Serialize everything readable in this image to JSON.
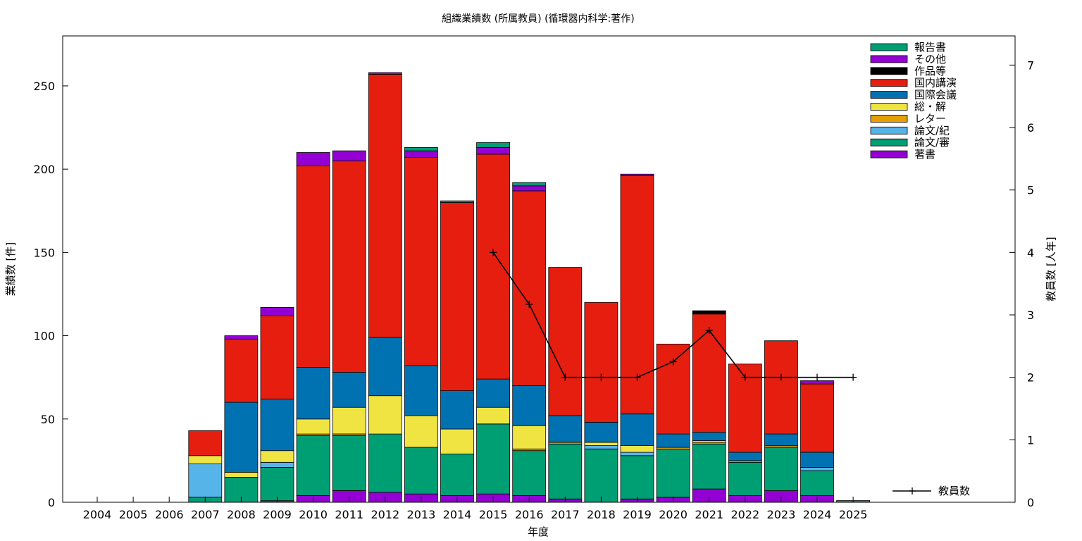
{
  "chart_data": {
    "type": "bar",
    "stacked": true,
    "title": "組織業績数 (所属教員) (循環器内科学:著作)",
    "xlabel": "年度",
    "ylabel": "業績数 [件]",
    "y2label": "教員数 [人年]",
    "ylim": [
      0,
      280
    ],
    "y2lim": [
      0,
      7.466667
    ],
    "yticks": [
      0,
      50,
      100,
      150,
      200,
      250
    ],
    "y2ticks": [
      0,
      1,
      2,
      3,
      4,
      5,
      6,
      7
    ],
    "grid": false,
    "legend_position": "top-right",
    "categories": [
      "2004",
      "2005",
      "2006",
      "2007",
      "2008",
      "2009",
      "2010",
      "2011",
      "2012",
      "2013",
      "2014",
      "2015",
      "2016",
      "2017",
      "2018",
      "2019",
      "2020",
      "2021",
      "2022",
      "2023",
      "2024",
      "2025"
    ],
    "series": [
      {
        "name": "著書",
        "color": "#9400d3",
        "values": [
          0,
          0,
          0,
          0,
          0,
          1,
          4,
          7,
          6,
          5,
          4,
          5,
          4,
          2,
          0,
          2,
          3,
          8,
          4,
          7,
          4,
          0
        ]
      },
      {
        "name": "論文/審",
        "color": "#009e73",
        "values": [
          0,
          0,
          0,
          3,
          15,
          20,
          36,
          33,
          35,
          28,
          25,
          42,
          27,
          33,
          32,
          26,
          29,
          27,
          20,
          26,
          15,
          1
        ]
      },
      {
        "name": "論文/紀",
        "color": "#56b4e9",
        "values": [
          0,
          0,
          0,
          20,
          0,
          3,
          0,
          0,
          0,
          0,
          0,
          0,
          0,
          0,
          2,
          2,
          0,
          0,
          0,
          0,
          2,
          0
        ]
      },
      {
        "name": "レター",
        "color": "#e69f00",
        "values": [
          0,
          0,
          0,
          0,
          0,
          0,
          1,
          1,
          0,
          0,
          0,
          0,
          1,
          1,
          0,
          0,
          1,
          1,
          1,
          1,
          0,
          0
        ]
      },
      {
        "name": "総・解",
        "color": "#f0e442",
        "values": [
          0,
          0,
          0,
          5,
          3,
          7,
          9,
          16,
          23,
          19,
          15,
          10,
          14,
          0,
          2,
          4,
          0,
          1,
          0,
          0,
          0,
          0
        ]
      },
      {
        "name": "国際会議",
        "color": "#0072b2",
        "values": [
          0,
          0,
          0,
          0,
          42,
          31,
          31,
          21,
          35,
          30,
          23,
          17,
          24,
          16,
          12,
          19,
          8,
          5,
          5,
          7,
          9,
          0
        ]
      },
      {
        "name": "国内講演",
        "color": "#e51e10",
        "values": [
          0,
          0,
          0,
          15,
          38,
          50,
          121,
          127,
          158,
          125,
          113,
          135,
          117,
          89,
          72,
          143,
          54,
          71,
          53,
          56,
          41,
          0
        ]
      },
      {
        "name": "作品等",
        "color": "#000000",
        "values": [
          0,
          0,
          0,
          0,
          0,
          0,
          0,
          0,
          0,
          0,
          0,
          0,
          0,
          0,
          0,
          0,
          0,
          2,
          0,
          0,
          0,
          0
        ]
      },
      {
        "name": "その他",
        "color": "#9400d3",
        "values": [
          0,
          0,
          0,
          0,
          2,
          5,
          8,
          6,
          1,
          4,
          0,
          4,
          3,
          0,
          0,
          1,
          0,
          0,
          0,
          0,
          2,
          0
        ]
      },
      {
        "name": "報告書",
        "color": "#009e73",
        "values": [
          0,
          0,
          0,
          0,
          0,
          0,
          0,
          0,
          0,
          2,
          1,
          3,
          2,
          0,
          0,
          0,
          0,
          0,
          0,
          0,
          0,
          0
        ]
      }
    ],
    "legend_order": [
      "報告書",
      "その他",
      "作品等",
      "国内講演",
      "国際会議",
      "総・解",
      "レター",
      "論文/紀",
      "論文/審",
      "著書"
    ],
    "line": {
      "name": "教員数",
      "axis": "y2",
      "color": "#000000",
      "x": [
        "2015",
        "2016",
        "2017",
        "2018",
        "2019",
        "2020",
        "2021",
        "2022",
        "2023",
        "2024",
        "2025"
      ],
      "values": [
        4,
        3.17,
        2,
        2,
        2,
        2.25,
        2.75,
        2,
        2,
        2,
        2
      ]
    }
  }
}
